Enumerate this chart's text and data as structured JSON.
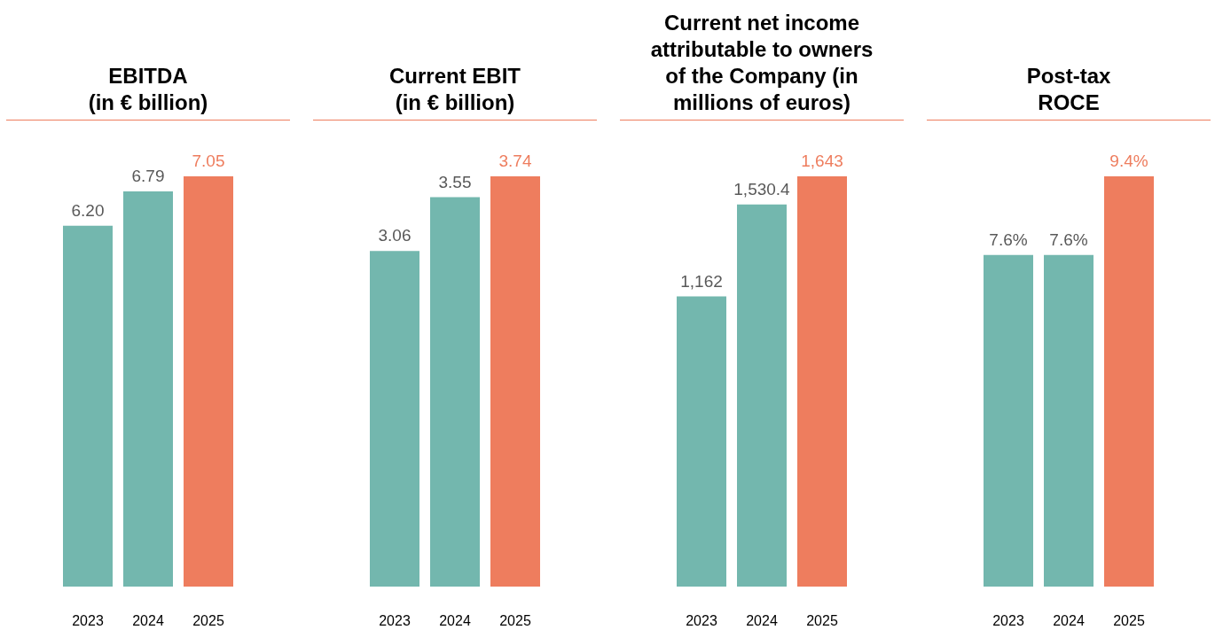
{
  "chart_data": [
    {
      "type": "bar",
      "title": "EBITDA\n(in € billion)",
      "categories": [
        "2023",
        "2024",
        "2025"
      ],
      "values": [
        6.2,
        6.79,
        7.05
      ],
      "colors": [
        "#73b7ae",
        "#73b7ae",
        "#ee7d5e"
      ],
      "value_labels": [
        "6.20",
        "6.79",
        "7.05"
      ]
    },
    {
      "type": "bar",
      "title": "Current EBIT\n(in € billion)",
      "categories": [
        "2023",
        "2024",
        "2025"
      ],
      "values": [
        3.06,
        3.55,
        3.74
      ],
      "colors": [
        "#73b7ae",
        "#73b7ae",
        "#ee7d5e"
      ],
      "value_labels": [
        "3.06",
        "3.55",
        "3.74"
      ]
    },
    {
      "type": "bar",
      "title": "Current net income\nattributable to owners\nof the Company (in\nmillions of euros)",
      "categories": [
        "2023",
        "2024",
        "2025"
      ],
      "values": [
        1162,
        1530.4,
        1643
      ],
      "colors": [
        "#73b7ae",
        "#73b7ae",
        "#ee7d5e"
      ],
      "value_labels": [
        "1,162",
        "1,530.4",
        "1,643"
      ]
    },
    {
      "type": "bar",
      "title": "Post-tax\nROCE",
      "categories": [
        "2023",
        "2024",
        "2025"
      ],
      "values": [
        7.6,
        7.6,
        9.4
      ],
      "colors": [
        "#73b7ae",
        "#73b7ae",
        "#ee7d5e"
      ],
      "value_labels": [
        "7.6%",
        "7.6%",
        "9.4%"
      ]
    }
  ]
}
